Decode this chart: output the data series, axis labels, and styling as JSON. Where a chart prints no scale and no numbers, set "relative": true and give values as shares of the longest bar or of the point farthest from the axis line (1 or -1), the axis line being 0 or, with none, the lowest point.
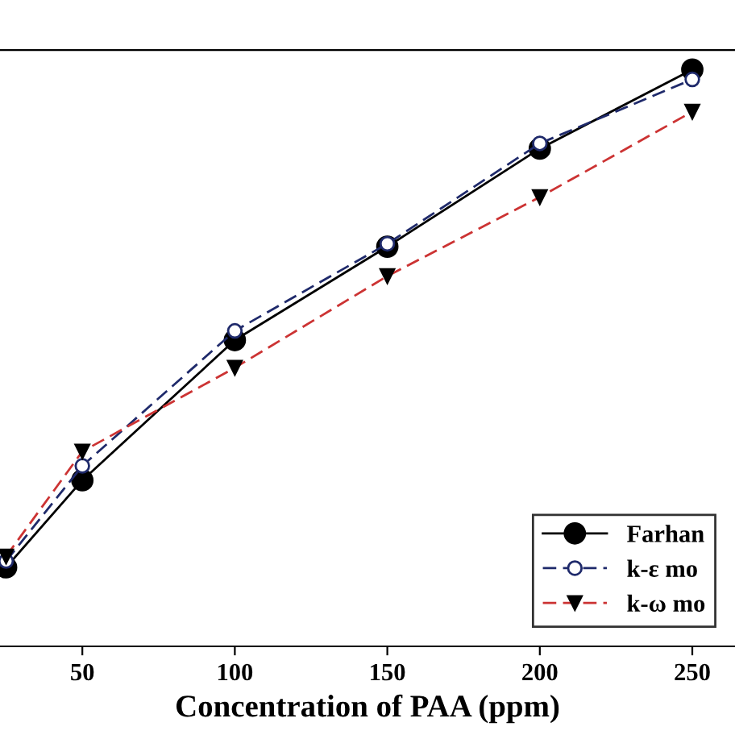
{
  "chart_data": {
    "type": "line",
    "xlabel": "Concentration of PAA (ppm)",
    "relative": true,
    "x": [
      25,
      50,
      100,
      150,
      200,
      250
    ],
    "xlim": [
      23,
      264
    ],
    "xticks": [
      50,
      100,
      150,
      200,
      250
    ],
    "grid": false,
    "legend": "bottom right",
    "series": [
      {
        "name": "Farhan",
        "color": "#000000",
        "marker": "circle",
        "line_style": "solid",
        "values": [
          0.137,
          0.288,
          0.531,
          0.693,
          0.863,
          1
        ]
      },
      {
        "name": "k-ε mo",
        "color": "#1f2a6b",
        "marker": "circle",
        "line_style": "dashed",
        "values": [
          0.148,
          0.313,
          0.547,
          0.698,
          0.872,
          0.983
        ]
      },
      {
        "name": "k-ω mo",
        "color": "#cc3333",
        "marker": "triangle",
        "line_style": "dashed",
        "values": [
          0.156,
          0.338,
          0.483,
          0.642,
          0.779,
          0.927
        ]
      }
    ]
  }
}
